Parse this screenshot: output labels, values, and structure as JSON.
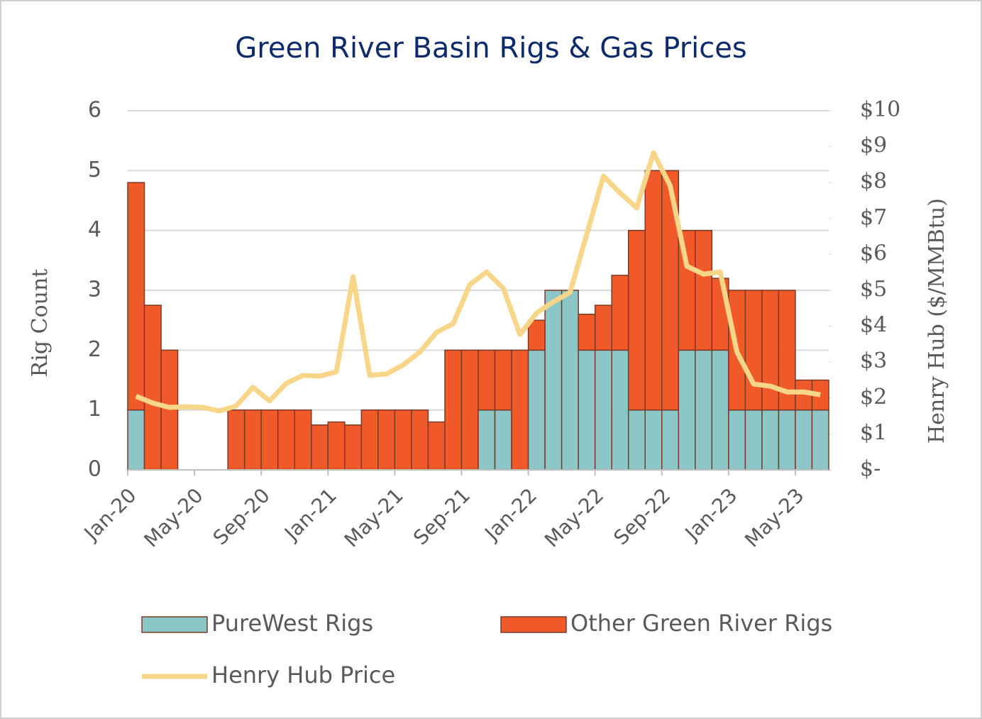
{
  "chart_data": {
    "type": "bar",
    "stacked": true,
    "title": "Green River Basin Rigs & Gas Prices",
    "ylabel": "Rig Count",
    "y2label": "Henry Hub ($/MMBtu)",
    "categories": [
      "Jan-20",
      null,
      null,
      null,
      "May-20",
      null,
      null,
      null,
      "Sep-20",
      null,
      null,
      null,
      "Jan-21",
      null,
      null,
      null,
      "May-21",
      null,
      null,
      null,
      "Sep-21",
      null,
      null,
      null,
      "Jan-22",
      null,
      null,
      null,
      "May-22",
      null,
      null,
      null,
      "Sep-22",
      null,
      null,
      null,
      "Jan-23",
      null,
      null,
      null,
      "May-23",
      null
    ],
    "series": [
      {
        "name": "PureWest Rigs",
        "color": "#8cc6c6",
        "values": [
          1,
          0,
          0,
          0,
          0,
          0,
          0,
          0,
          0,
          0,
          0,
          0,
          0,
          0,
          0,
          0,
          0,
          0,
          0,
          0,
          0,
          1,
          1,
          0,
          2,
          3,
          3,
          2,
          2,
          2,
          1,
          1,
          1,
          2,
          2,
          2,
          1,
          1,
          1,
          1,
          1,
          1
        ]
      },
      {
        "name": "Other Green River Rigs",
        "color": "#f05a28",
        "values": [
          3.8,
          2.75,
          2,
          0,
          0,
          0,
          1,
          1,
          1,
          1,
          1,
          0.75,
          0.8,
          0.75,
          1,
          1,
          1,
          1,
          0.8,
          2,
          2,
          1,
          1,
          2,
          0.5,
          0,
          0,
          0.6,
          0.75,
          1.25,
          3,
          4,
          4,
          2,
          2,
          1.2,
          2,
          2,
          2,
          2,
          0.5,
          0.5
        ]
      },
      {
        "name": "Henry Hub Price",
        "color": "#f7d689",
        "type": "line",
        "axis": "y2",
        "values": [
          2.05,
          1.86,
          1.74,
          1.76,
          1.74,
          1.64,
          1.78,
          2.3,
          1.92,
          2.41,
          2.63,
          2.61,
          2.73,
          5.38,
          2.63,
          2.67,
          2.92,
          3.28,
          3.83,
          4.07,
          5.16,
          5.51,
          5.06,
          3.77,
          4.37,
          4.68,
          4.94,
          6.56,
          8.18,
          7.71,
          7.29,
          8.83,
          7.91,
          5.67,
          5.45,
          5.51,
          3.28,
          2.39,
          2.33,
          2.17,
          2.17,
          2.09
        ]
      }
    ],
    "ylim": [
      0,
      6
    ],
    "yticks": [
      0,
      1,
      2,
      3,
      4,
      5,
      6
    ],
    "y2lim": [
      0,
      10
    ],
    "y2ticks": [
      {
        "value": 0,
        "label": "$-"
      },
      {
        "value": 1,
        "label": "$1"
      },
      {
        "value": 2,
        "label": "$2"
      },
      {
        "value": 3,
        "label": "$3"
      },
      {
        "value": 4,
        "label": "$4"
      },
      {
        "value": 5,
        "label": "$5"
      },
      {
        "value": 6,
        "label": "$6"
      },
      {
        "value": 7,
        "label": "$7"
      },
      {
        "value": 8,
        "label": "$8"
      },
      {
        "value": 9,
        "label": "$9"
      },
      {
        "value": 10,
        "label": "$10"
      }
    ],
    "grid": true,
    "legend": "bottom"
  }
}
